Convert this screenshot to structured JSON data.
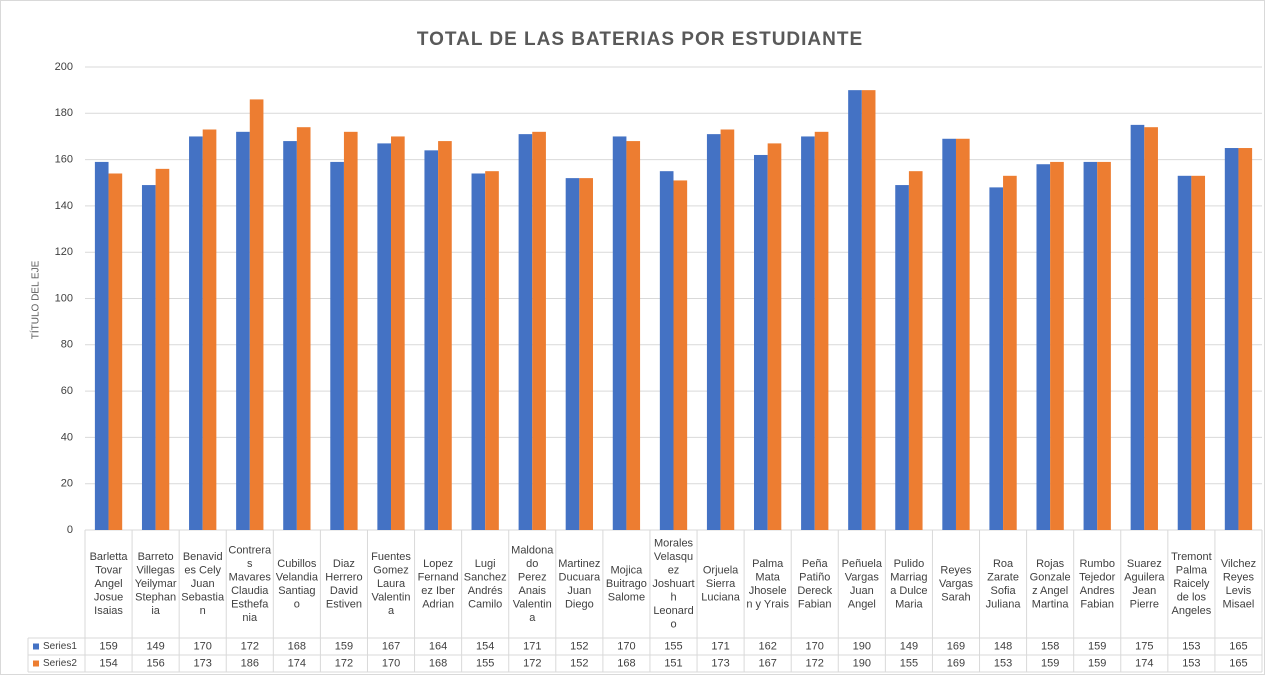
{
  "chart_data": {
    "type": "bar",
    "title": "TOTAL DE LAS BATERIAS POR ESTUDIANTE",
    "y_label": "TÍTULO DEL EJE",
    "categories": [
      "Barletta Tovar Angel Josue Isaias",
      "Barreto Villegas Yeilymar Stephania",
      "Benavides Cely Juan Sebastian",
      "Contreras Mavares Claudia Esthefania",
      "Cubillos Velandia Santiago",
      "Diaz Herrero David Estiven",
      "Fuentes Gomez Laura Valentina",
      "Lopez Fernandez Iber Adrian",
      "Lugi Sanchez Andrés Camilo",
      "Maldonado Perez Anais Valentina",
      "Martinez Ducuara Juan Diego",
      "Mojica Buitrago Salome",
      "Morales Velasquez Joshuarth Leonardo",
      "Orjuela Sierra Luciana",
      "Palma Mata Jhoselen y Yrais",
      "Peña Patiño Dereck Fabian",
      "Peñuela Vargas Juan Angel",
      "Pulido Marriaga Dulce Maria",
      "Reyes Vargas Sarah",
      "Roa Zarate Sofia Juliana",
      "Rojas Gonzalez Angel Martina",
      "Rumbo Tejedor Andres Fabian",
      "Suarez Aguilera Jean Pierre",
      "Tremont Palma Raicely de los Angeles",
      "Vilchez Reyes Levis Misael"
    ],
    "series": [
      {
        "name": "Series1",
        "color": "#4472c4",
        "values": [
          159,
          149,
          170,
          172,
          168,
          159,
          167,
          164,
          154,
          171,
          152,
          170,
          155,
          171,
          162,
          170,
          190,
          149,
          169,
          148,
          158,
          159,
          175,
          153,
          165
        ]
      },
      {
        "name": "Series2",
        "color": "#ed7d31",
        "values": [
          154,
          156,
          173,
          186,
          174,
          172,
          170,
          168,
          155,
          172,
          152,
          168,
          151,
          173,
          167,
          172,
          190,
          155,
          169,
          153,
          159,
          159,
          174,
          153,
          165
        ]
      }
    ],
    "ylim": [
      0,
      200
    ],
    "yticks": [
      0,
      20,
      40,
      60,
      80,
      100,
      120,
      140,
      160,
      180,
      200
    ],
    "grid": true
  }
}
